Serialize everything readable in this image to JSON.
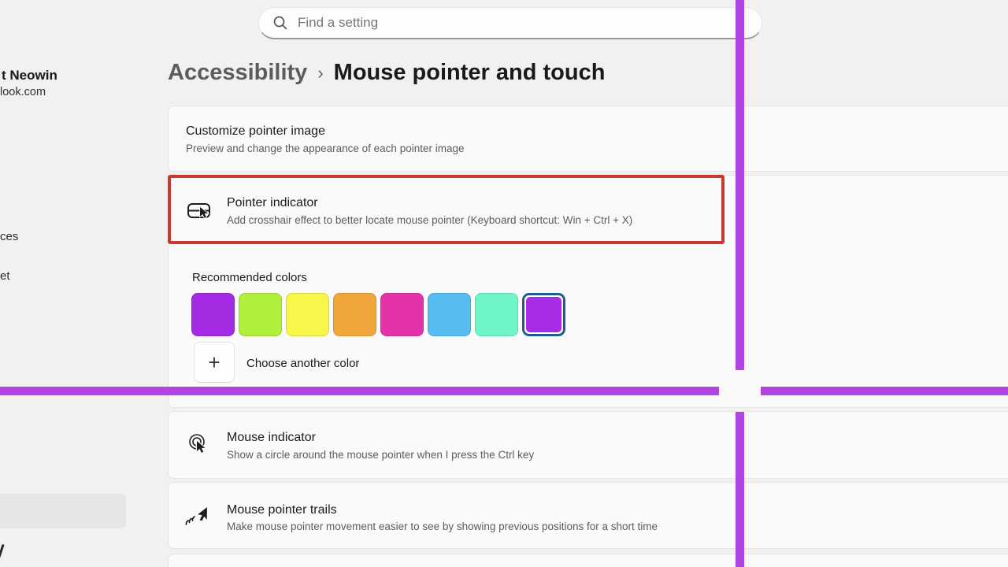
{
  "page": {
    "background": "#f2f1f0"
  },
  "search": {
    "placeholder": "Find a setting"
  },
  "breadcrumb": {
    "parent": "Accessibility",
    "separator": "›",
    "current": "Mouse pointer and touch"
  },
  "sidebar": {
    "account_name_fragment": "t Neowin",
    "account_email_fragment": "look.com",
    "item_fragment_1": "ces",
    "item_fragment_2": "et"
  },
  "cards": {
    "customize_pointer": {
      "title": "Customize pointer image",
      "subtitle": "Preview and change the appearance of each pointer image"
    },
    "pointer_indicator": {
      "title": "Pointer indicator",
      "subtitle": "Add crosshair effect to better locate mouse pointer (Keyboard shortcut: Win + Ctrl + X)",
      "recommended_colors_label": "Recommended colors",
      "choose_another_color_label": "Choose another color",
      "plus_glyph": "+",
      "selection_ring_color": "#235a8c",
      "swatches": [
        {
          "hex": "#a32ce2",
          "selected": false
        },
        {
          "hex": "#b0f03c",
          "selected": false
        },
        {
          "hex": "#f7f74b",
          "selected": false
        },
        {
          "hex": "#efa63b",
          "selected": false
        },
        {
          "hex": "#e433a8",
          "selected": false
        },
        {
          "hex": "#55bdf0",
          "selected": false
        },
        {
          "hex": "#70f6c6",
          "selected": false
        },
        {
          "hex": "#a62ce8",
          "selected": true
        }
      ]
    },
    "mouse_indicator": {
      "title": "Mouse indicator",
      "subtitle": "Show a circle around the mouse pointer when I press the Ctrl key"
    },
    "pointer_trails": {
      "title": "Mouse pointer trails",
      "subtitle": "Make mouse pointer movement easier to see by showing previous positions for a short time"
    }
  },
  "annotation": {
    "color": "#c63a2f"
  },
  "crosshair": {
    "color": "#b144e2"
  }
}
